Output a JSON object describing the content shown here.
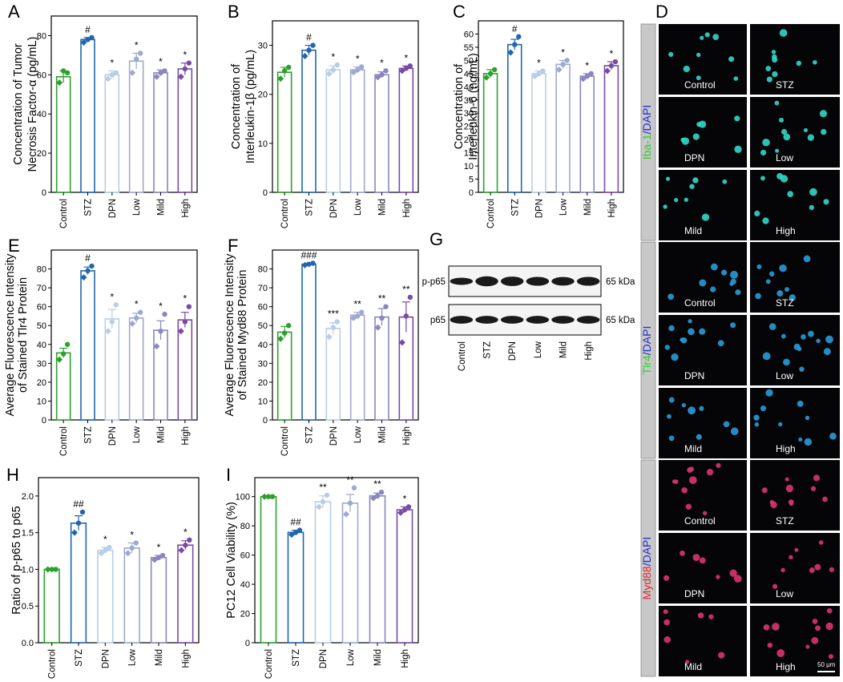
{
  "figure": {
    "colors": {
      "Control": "#2ca02c",
      "STZ": "#2166ac",
      "DPN": "#b8cde6",
      "Low": "#9ea9d0",
      "Mild": "#8a86bf",
      "High": "#7a4aa6"
    },
    "scale_bar": "50 μm"
  },
  "chart_data": [
    {
      "panel": "A",
      "type": "bar",
      "ylabel": [
        "Concentration of Tumor",
        "Necrosis Factor-α (pg/mL)"
      ],
      "ylim": [
        0,
        90
      ],
      "yticks": [
        0,
        20,
        40,
        60,
        80
      ],
      "categories": [
        "Control",
        "STZ",
        "DPN",
        "Low",
        "Mild",
        "High"
      ],
      "values": [
        59,
        78,
        60,
        67,
        61,
        63
      ],
      "errors": [
        3,
        1,
        2,
        4,
        1.5,
        3
      ],
      "points": [
        [
          56,
          62,
          61
        ],
        [
          76.5,
          78,
          79
        ],
        [
          58,
          60,
          61
        ],
        [
          61,
          68,
          71
        ],
        [
          59,
          61,
          62
        ],
        [
          59,
          63,
          66
        ]
      ],
      "annotations": [
        "",
        "#",
        "*",
        "*",
        "*",
        "*"
      ]
    },
    {
      "panel": "B",
      "type": "bar",
      "ylabel": [
        "Concentration of",
        "Interleukin-1β (pg/mL)"
      ],
      "ylim": [
        0,
        35
      ],
      "yticks": [
        0,
        10,
        20,
        30
      ],
      "categories": [
        "Control",
        "STZ",
        "DPN",
        "Low",
        "Mild",
        "High"
      ],
      "values": [
        24.5,
        29,
        25,
        25,
        24,
        25.3
      ],
      "errors": [
        1,
        1,
        0.8,
        0.6,
        0.6,
        0.5
      ],
      "points": [
        [
          23.2,
          24.8,
          25.5
        ],
        [
          27.8,
          29,
          30
        ],
        [
          24.2,
          25,
          26
        ],
        [
          24.5,
          25,
          25.6
        ],
        [
          23.5,
          24,
          24.8
        ],
        [
          24.8,
          25.3,
          25.8
        ]
      ],
      "annotations": [
        "",
        "#",
        "*",
        "*",
        "*",
        "*"
      ]
    },
    {
      "panel": "C",
      "type": "bar",
      "ylabel": [
        "Concentration of",
        "Interleukin-6 (ng/mL)"
      ],
      "ylim": [
        0,
        65
      ],
      "yticks": [
        0,
        5,
        10,
        15,
        20,
        25,
        30,
        35,
        40,
        45,
        50,
        55,
        60
      ],
      "categories": [
        "Control",
        "STZ",
        "DPN",
        "Low",
        "Mild",
        "High"
      ],
      "values": [
        45,
        56,
        45,
        48.5,
        44,
        48
      ],
      "errors": [
        1.5,
        2,
        1,
        1.5,
        1,
        1.5
      ],
      "points": [
        [
          43.5,
          45,
          46.5
        ],
        [
          53,
          56,
          59
        ],
        [
          44,
          45,
          46
        ],
        [
          46.5,
          48.5,
          50
        ],
        [
          43,
          44,
          45
        ],
        [
          46,
          48,
          49.5
        ]
      ],
      "annotations": [
        "",
        "#",
        "*",
        "*",
        "*",
        "*"
      ]
    },
    {
      "panel": "E",
      "type": "bar",
      "ylabel": [
        "Average Fluorescence Intensity",
        "of Stained Tlr4 Protein"
      ],
      "ylim": [
        0,
        90
      ],
      "yticks": [
        0,
        10,
        20,
        30,
        40,
        50,
        60,
        70,
        80
      ],
      "categories": [
        "Control",
        "STZ",
        "DPN",
        "Low",
        "Mild",
        "High"
      ],
      "values": [
        35.5,
        79,
        53.5,
        54,
        47.5,
        53
      ],
      "errors": [
        2.5,
        2,
        5,
        2.5,
        5,
        4
      ],
      "points": [
        [
          32,
          35,
          40
        ],
        [
          75.5,
          79,
          81.5
        ],
        [
          47,
          52,
          61
        ],
        [
          51,
          54,
          57
        ],
        [
          39,
          47,
          56
        ],
        [
          47,
          52,
          60
        ]
      ],
      "annotations": [
        "",
        "#",
        "*",
        "*",
        "*",
        "*"
      ]
    },
    {
      "panel": "F",
      "type": "bar",
      "ylabel": [
        "Average Fluorescence Intensity",
        "of Stained Myd88 Protein"
      ],
      "ylim": [
        0,
        90
      ],
      "yticks": [
        0,
        10,
        20,
        30,
        40,
        50,
        60,
        70,
        80
      ],
      "categories": [
        "Control",
        "STZ",
        "DPN",
        "Low",
        "Mild",
        "High"
      ],
      "values": [
        46.5,
        82.5,
        48.5,
        55.5,
        54.5,
        54.5
      ],
      "errors": [
        3,
        0.5,
        3,
        1.5,
        4.5,
        8
      ],
      "points": [
        [
          43,
          46,
          50
        ],
        [
          82,
          82.5,
          83
        ],
        [
          44,
          49,
          52
        ],
        [
          54,
          55,
          57
        ],
        [
          49,
          54,
          60
        ],
        [
          41,
          55,
          65
        ]
      ],
      "annotations": [
        "",
        "###",
        "***",
        "**",
        "**",
        "**"
      ]
    },
    {
      "panel": "H",
      "type": "bar",
      "ylabel": [
        "Ratio of p-p65 to p65"
      ],
      "ylim": [
        0,
        2.25
      ],
      "yticks": [
        "0.0",
        "0.5",
        "1.0",
        "1.5",
        "2.0"
      ],
      "categories": [
        "Control",
        "STZ",
        "DPN",
        "Low",
        "Mild",
        "High"
      ],
      "values": [
        1.0,
        1.63,
        1.26,
        1.29,
        1.16,
        1.33
      ],
      "errors": [
        0,
        0.1,
        0.04,
        0.07,
        0.03,
        0.06
      ],
      "points": [
        [
          1,
          1,
          1
        ],
        [
          1.5,
          1.63,
          1.78
        ],
        [
          1.22,
          1.26,
          1.3
        ],
        [
          1.22,
          1.29,
          1.36
        ],
        [
          1.13,
          1.16,
          1.19
        ],
        [
          1.26,
          1.33,
          1.4
        ]
      ],
      "annotations": [
        "",
        "##",
        "*",
        "*",
        "*",
        "*"
      ]
    },
    {
      "panel": "I",
      "type": "bar",
      "ylabel": [
        "PC12 Cell Viability (%)"
      ],
      "ylim": [
        0,
        113
      ],
      "yticks": [
        0,
        20,
        40,
        60,
        80,
        100
      ],
      "categories": [
        "Control",
        "STZ",
        "DPN",
        "Low",
        "Mild",
        "High"
      ],
      "values": [
        100,
        75.5,
        96.5,
        95.5,
        100.5,
        91
      ],
      "errors": [
        0,
        1.5,
        4,
        6,
        2,
        2
      ],
      "points": [
        [
          100,
          100,
          100
        ],
        [
          74,
          75.5,
          77
        ],
        [
          93,
          96.5,
          101
        ],
        [
          88,
          95.5,
          106
        ],
        [
          99,
          100.5,
          103
        ],
        [
          89,
          91,
          93
        ]
      ],
      "annotations": [
        "",
        "##",
        "**",
        "**",
        "**",
        "*"
      ]
    }
  ],
  "panel_g": {
    "label": "G",
    "rows": [
      {
        "name": "p-p65",
        "size": "65 kDa"
      },
      {
        "name": "p65",
        "size": "65 kDa"
      }
    ],
    "lanes": [
      "Control",
      "STZ",
      "DPN",
      "Low",
      "Mild",
      "High"
    ]
  },
  "panel_d": {
    "label": "D",
    "groups": [
      {
        "stain": "Iba-1",
        "stain_color": "#2bd12b",
        "counter": "/DAPI",
        "cell_color": "#33d6c8",
        "labels": [
          "Control",
          "STZ",
          "DPN",
          "Low",
          "Mild",
          "High"
        ]
      },
      {
        "stain": "Tlr4",
        "stain_color": "#2bd12b",
        "counter": "/DAPI",
        "cell_color": "#2a9ad8",
        "labels": [
          "Control",
          "STZ",
          "DPN",
          "Low",
          "Mild",
          "High"
        ]
      },
      {
        "stain": "Myd88",
        "stain_color": "#e0252b",
        "counter": "/DAPI",
        "cell_color": "#d8366b",
        "labels": [
          "Control",
          "STZ",
          "DPN",
          "Low",
          "Mild",
          "High"
        ]
      }
    ]
  }
}
